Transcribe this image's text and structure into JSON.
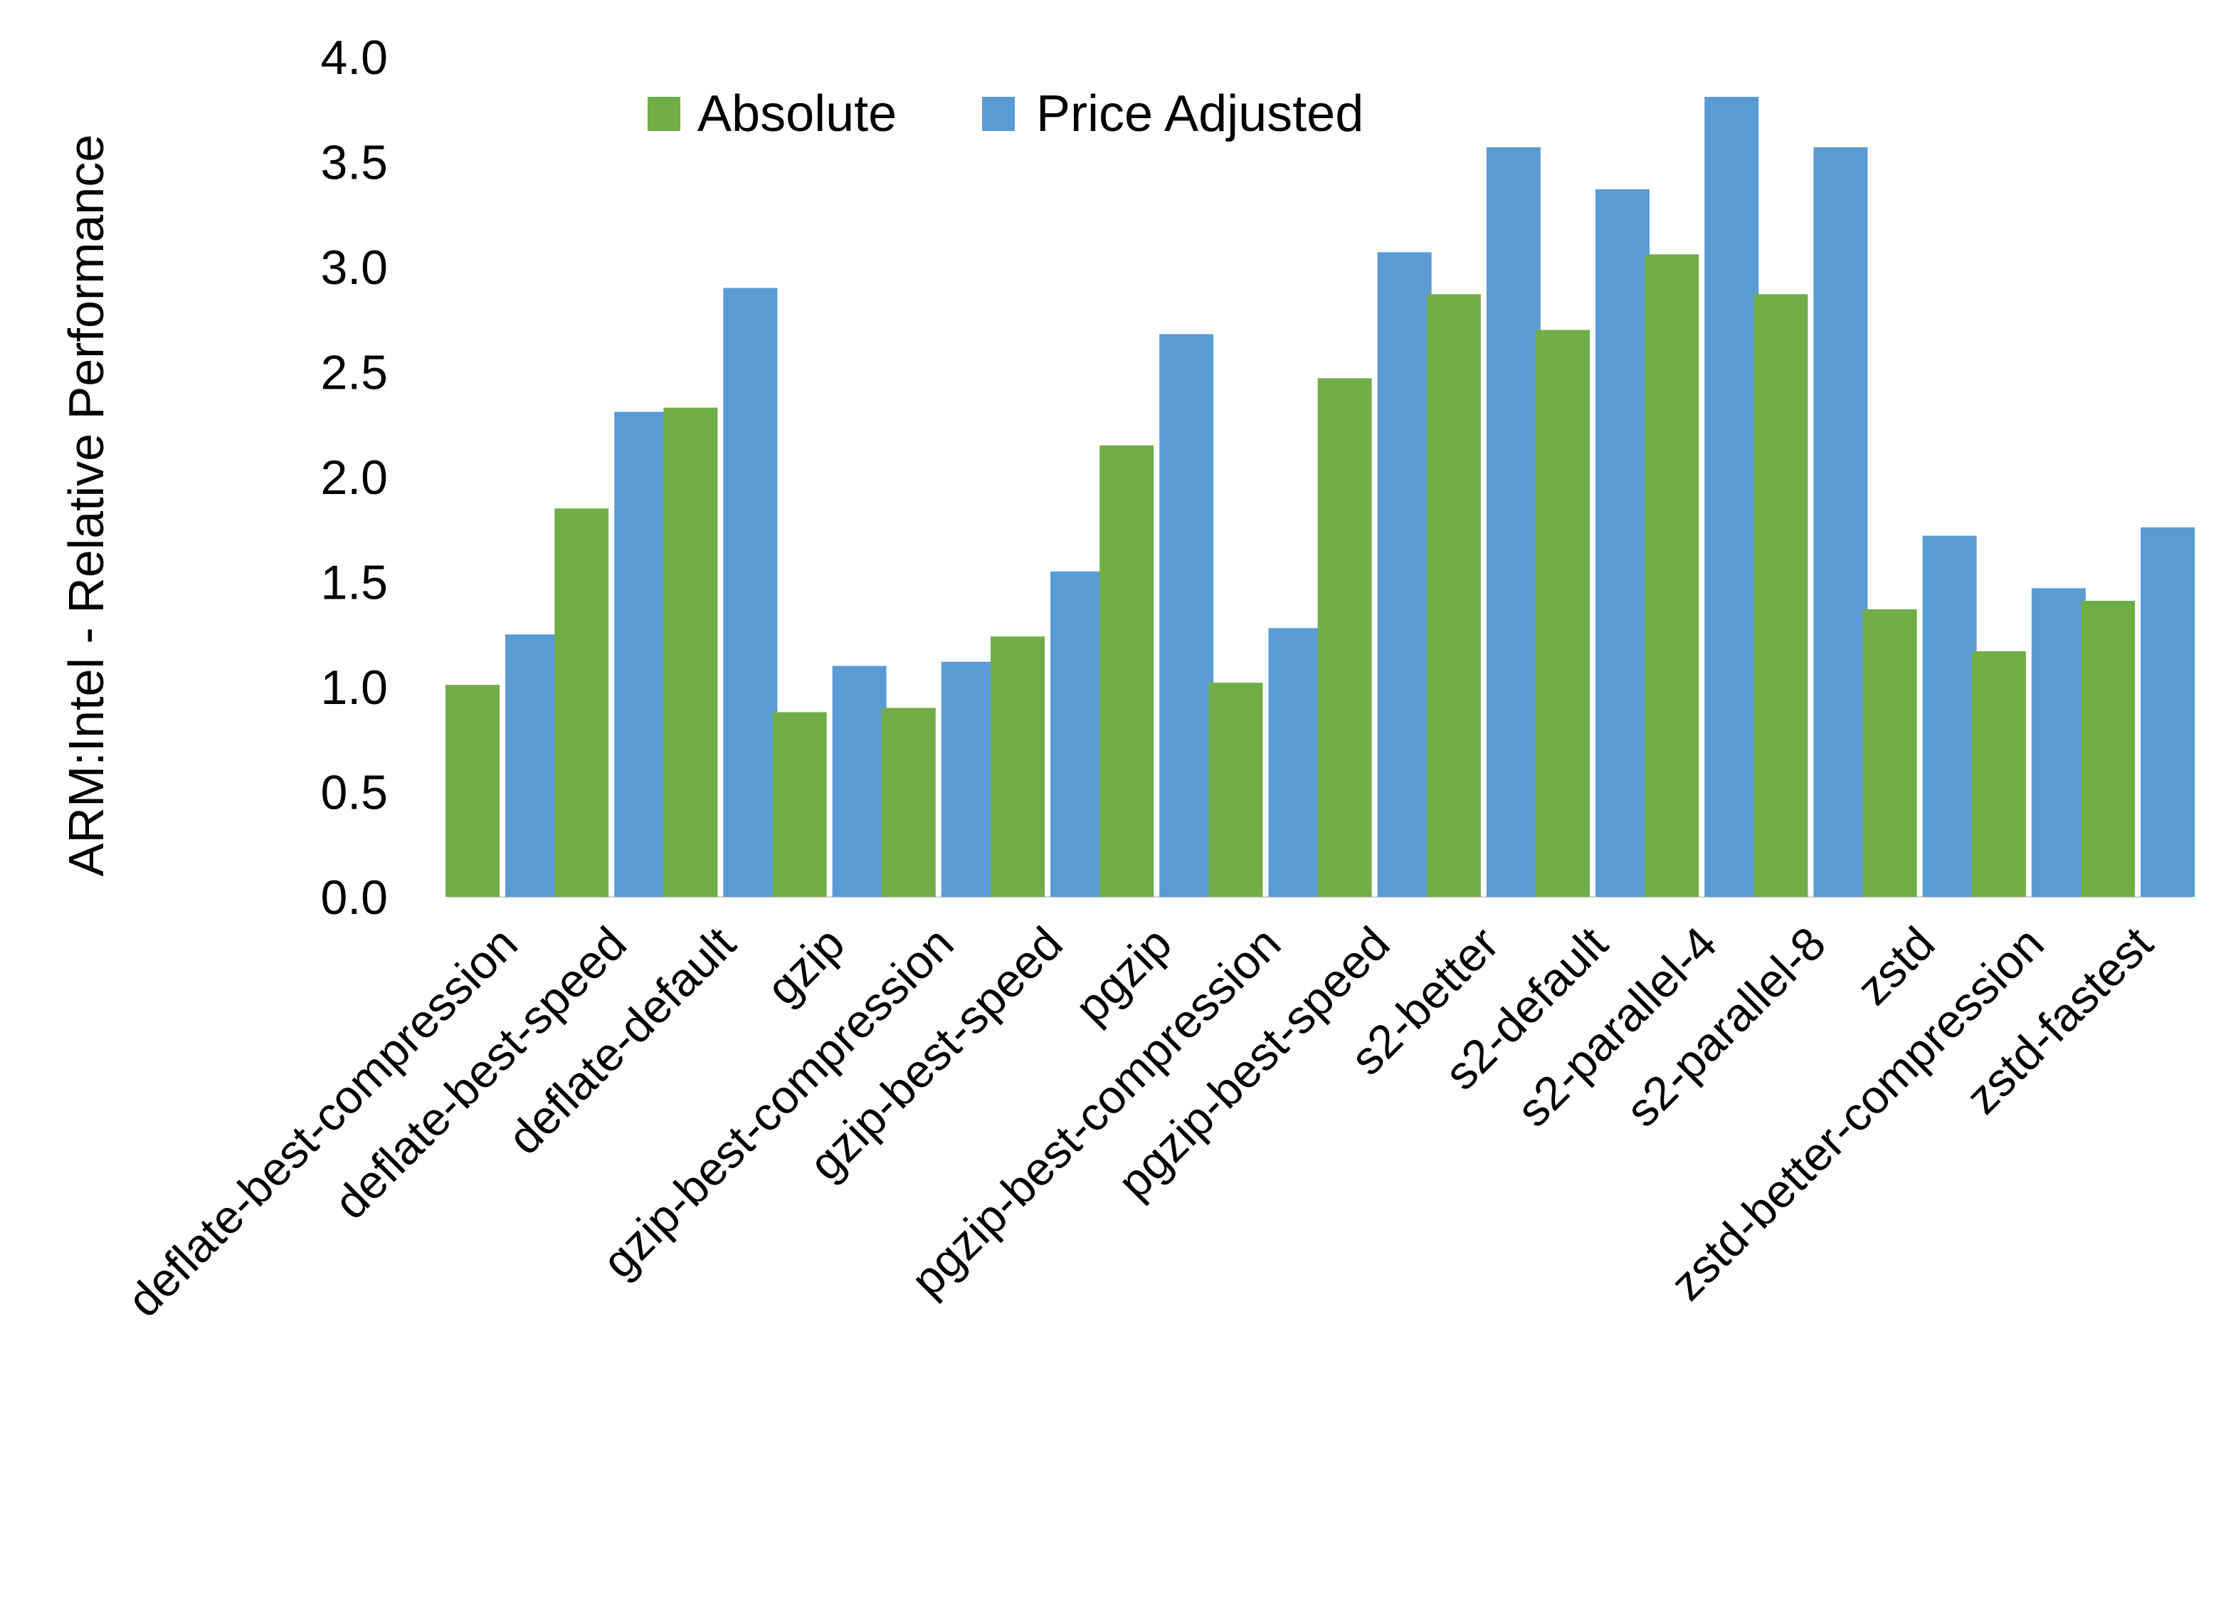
{
  "chart_data": {
    "type": "bar",
    "title": "",
    "xlabel": "",
    "ylabel": "ARM:Intel - Relative Performance",
    "ylim": [
      0,
      4
    ],
    "yticks": [
      "0.0",
      "0.5",
      "1.0",
      "1.5",
      "2.0",
      "2.5",
      "3.0",
      "3.5",
      "4.0"
    ],
    "grid": false,
    "legend_position": "top-center",
    "categories": [
      "deflate-best-compression",
      "deflate-best-speed",
      "deflate-default",
      "gzip",
      "gzip-best-compression",
      "gzip-best-speed",
      "pgzip",
      "pgzip-best-compression",
      "pgzip-best-speed",
      "s2-better",
      "s2-default",
      "s2-parallel-4",
      "s2-parallel-8",
      "zstd",
      "zstd-better-compression",
      "zstd-fastest"
    ],
    "series": [
      {
        "name": "Absolute",
        "color": "#70AD47",
        "values": [
          1.01,
          1.85,
          2.33,
          0.88,
          0.9,
          1.24,
          2.15,
          1.02,
          2.47,
          2.87,
          2.7,
          3.06,
          2.87,
          1.37,
          1.17,
          1.41
        ]
      },
      {
        "name": "Price Adjusted",
        "color": "#5B9BD5",
        "values": [
          1.25,
          2.31,
          2.9,
          1.1,
          1.12,
          1.55,
          2.68,
          1.28,
          3.07,
          3.57,
          3.37,
          3.81,
          3.57,
          1.72,
          1.47,
          1.76
        ]
      }
    ]
  }
}
